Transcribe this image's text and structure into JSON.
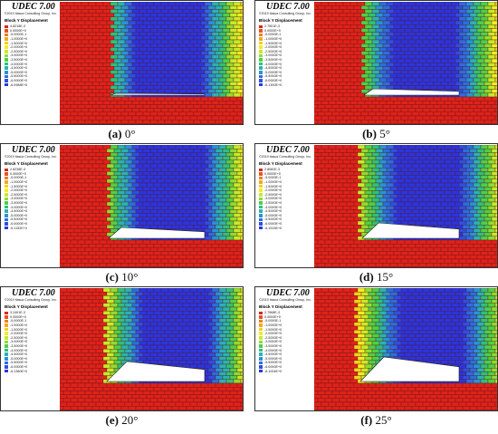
{
  "software": "UDEC 7.00",
  "copyright": "©2019 Itasca Consulting Group, Inc.",
  "legend_title": "Block Y Displacement",
  "panels": [
    {
      "letter": "(a)",
      "angle": "0°",
      "legend": [
        "4.8218E-3",
        "0.0000E+0",
        "-5.0000E-1",
        "-1.0000E+0",
        "-1.5000E+0",
        "-2.0000E+0",
        "-2.5000E+0",
        "-3.0000E+0",
        "-3.5000E+0",
        "-4.0000E+0",
        "-4.5000E+0",
        "-5.0000E+0",
        "-5.5000E+0",
        "-6.0000E+0",
        "-6.0988E+0"
      ]
    },
    {
      "letter": "(b)",
      "angle": "5°",
      "legend": [
        "2.7501E-3",
        "0.0000E+0",
        "-5.0000E-1",
        "-1.0000E+0",
        "-1.5000E+0",
        "-2.0000E+0",
        "-2.5000E+0",
        "-3.0000E+0",
        "-3.5000E+0",
        "-4.0000E+0",
        "-4.5000E+0",
        "-5.0000E+0",
        "-5.5000E+0",
        "-6.0000E+0",
        "-6.1300E+0"
      ]
    },
    {
      "letter": "(c)",
      "angle": "10°",
      "legend": [
        "2.8238E-3",
        "0.0000E+0",
        "-5.0000E-1",
        "-1.0000E+0",
        "-1.5000E+0",
        "-2.0000E+0",
        "-2.5000E+0",
        "-3.0000E+0",
        "-3.5000E+0",
        "-4.0000E+0",
        "-4.5000E+0",
        "-5.0000E+0",
        "-5.5000E+0",
        "-6.0000E+0",
        "-6.1152E+0"
      ]
    },
    {
      "letter": "(d)",
      "angle": "15°",
      "legend": [
        "2.8082E-3",
        "0.0000E+0",
        "-5.0000E-1",
        "-1.0000E+0",
        "-1.5000E+0",
        "-2.0000E+0",
        "-2.5000E+0",
        "-3.0000E+0",
        "-3.5000E+0",
        "-4.0000E+0",
        "-4.5000E+0",
        "-5.0000E+0",
        "-5.5000E+0",
        "-6.0000E+0",
        "-6.1515E+0"
      ]
    },
    {
      "letter": "(e)",
      "angle": "20°",
      "legend": [
        "3.2401E-3",
        "0.0000E+0",
        "-5.0000E-1",
        "-1.0000E+0",
        "-1.5000E+0",
        "-2.0000E+0",
        "-2.5000E+0",
        "-3.0000E+0",
        "-3.5000E+0",
        "-4.0000E+0",
        "-4.5000E+0",
        "-5.0000E+0",
        "-5.5000E+0",
        "-6.0000E+0",
        "-6.1380E+0"
      ]
    },
    {
      "letter": "(f)",
      "angle": "25°",
      "legend": [
        "2.7968E-3",
        "0.0000E+0",
        "-5.0000E-1",
        "-1.0000E+0",
        "-1.5000E+0",
        "-2.0000E+0",
        "-2.5000E+0",
        "-3.0000E+0",
        "-3.5000E+0",
        "-4.0000E+0",
        "-4.5000E+0",
        "-5.0000E+0",
        "-5.5000E+0",
        "-6.0000E+0",
        "-6.1004E+0"
      ]
    }
  ],
  "colors": {
    "scale": [
      "#e0221b",
      "#e8531a",
      "#ef7f1c",
      "#f5a81c",
      "#f7d01e",
      "#f2ee22",
      "#c8ea2a",
      "#8fdc33",
      "#4fcf47",
      "#2fc07a",
      "#2ab3b2",
      "#2794d6",
      "#2a6ee0",
      "#2d4fe3",
      "#2a35e0"
    ],
    "joint_line": "#5a1410"
  }
}
